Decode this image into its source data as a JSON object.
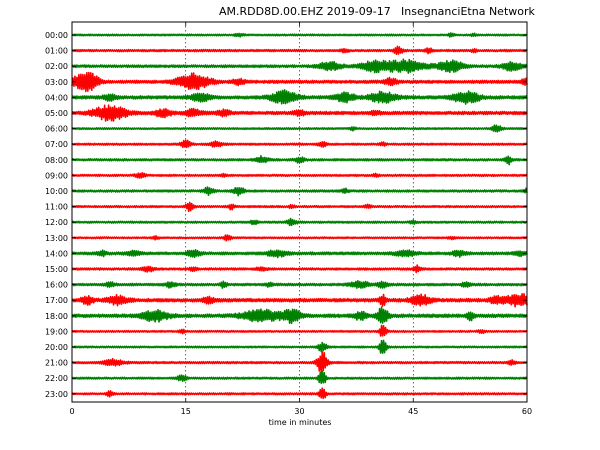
{
  "chart_data": {
    "type": "line",
    "title": "AM.RDD8D.00.EHZ 2019-09-17",
    "network": "InsegnanciEtna Network",
    "xlabel": "time in minutes",
    "xlim": [
      0,
      60
    ],
    "xticks": [
      0,
      15,
      30,
      45,
      60
    ],
    "grid": "dotted vertical lines at 15, 30, 45 minutes",
    "colors": {
      "red": "#ff0000",
      "green": "#008000"
    },
    "series": [
      {
        "label": "00:00",
        "color": "green",
        "noise": 0.8,
        "events": [
          [
            22,
            1.2,
            1.5
          ],
          [
            50,
            1.6,
            1.0
          ],
          [
            53,
            1.0,
            1.0
          ]
        ]
      },
      {
        "label": "01:00",
        "color": "red",
        "noise": 1.0,
        "events": [
          [
            36,
            1.5,
            1.2
          ],
          [
            43,
            3.5,
            1.5
          ],
          [
            47,
            2.2,
            1.2
          ],
          [
            53,
            1.2,
            1.0
          ]
        ]
      },
      {
        "label": "02:00",
        "color": "green",
        "noise": 1.2,
        "events": [
          [
            34,
            4.0,
            3.5
          ],
          [
            40,
            5.0,
            4.5
          ],
          [
            44,
            6.0,
            6.0
          ],
          [
            50,
            5.0,
            4.0
          ],
          [
            58,
            4.0,
            3.0
          ]
        ]
      },
      {
        "label": "03:00",
        "color": "red",
        "noise": 1.4,
        "events": [
          [
            1,
            6.0,
            3.0
          ],
          [
            2.5,
            7.0,
            2.5
          ],
          [
            16,
            7.5,
            5.0
          ],
          [
            22,
            2.5,
            2.0
          ],
          [
            42,
            3.0,
            2.0
          ],
          [
            60,
            2.5,
            2.0
          ]
        ]
      },
      {
        "label": "04:00",
        "color": "green",
        "noise": 1.5,
        "events": [
          [
            5,
            3.0,
            2.0
          ],
          [
            17,
            3.5,
            3.0
          ],
          [
            28,
            6.0,
            4.0
          ],
          [
            36,
            4.0,
            3.0
          ],
          [
            41,
            5.0,
            4.0
          ],
          [
            52,
            5.5,
            4.0
          ]
        ]
      },
      {
        "label": "05:00",
        "color": "red",
        "noise": 1.5,
        "events": [
          [
            5,
            7.0,
            5.0
          ],
          [
            12,
            3.5,
            2.5
          ],
          [
            16,
            3.0,
            2.5
          ],
          [
            20,
            2.5,
            2.0
          ],
          [
            30,
            2.0,
            2.0
          ],
          [
            40,
            1.5,
            1.5
          ]
        ]
      },
      {
        "label": "06:00",
        "color": "green",
        "noise": 0.8,
        "events": [
          [
            56,
            3.5,
            1.5
          ],
          [
            37,
            1.5,
            1.0
          ]
        ]
      },
      {
        "label": "07:00",
        "color": "red",
        "noise": 0.9,
        "events": [
          [
            15,
            4.0,
            1.5
          ],
          [
            19,
            2.5,
            2.0
          ],
          [
            33,
            2.0,
            1.5
          ],
          [
            41,
            1.5,
            1.0
          ]
        ]
      },
      {
        "label": "08:00",
        "color": "green",
        "noise": 1.0,
        "events": [
          [
            25,
            3.0,
            2.0
          ],
          [
            30,
            2.5,
            1.5
          ],
          [
            57.5,
            4.5,
            1.0
          ]
        ]
      },
      {
        "label": "09:00",
        "color": "red",
        "noise": 0.9,
        "events": [
          [
            9,
            2.5,
            1.5
          ],
          [
            20,
            1.5,
            1.0
          ],
          [
            40,
            1.2,
            1.0
          ]
        ]
      },
      {
        "label": "10:00",
        "color": "green",
        "noise": 1.0,
        "events": [
          [
            18,
            3.5,
            1.5
          ],
          [
            22,
            4.0,
            1.5
          ],
          [
            36,
            2.0,
            1.0
          ],
          [
            60,
            2.0,
            1.0
          ]
        ]
      },
      {
        "label": "11:00",
        "color": "red",
        "noise": 0.9,
        "events": [
          [
            15.5,
            5.0,
            1.0
          ],
          [
            21,
            2.5,
            1.0
          ],
          [
            29,
            1.5,
            1.0
          ],
          [
            39,
            1.5,
            1.0
          ]
        ]
      },
      {
        "label": "12:00",
        "color": "green",
        "noise": 0.9,
        "events": [
          [
            24,
            2.0,
            1.0
          ],
          [
            29,
            3.0,
            1.5
          ],
          [
            45,
            1.5,
            1.0
          ]
        ]
      },
      {
        "label": "13:00",
        "color": "red",
        "noise": 0.8,
        "events": [
          [
            11,
            1.5,
            1.0
          ],
          [
            20.5,
            3.0,
            1.0
          ],
          [
            50,
            1.2,
            1.0
          ]
        ]
      },
      {
        "label": "14:00",
        "color": "green",
        "noise": 1.3,
        "events": [
          [
            4,
            2.0,
            1.5
          ],
          [
            8,
            2.5,
            2.0
          ],
          [
            16,
            3.5,
            2.0
          ],
          [
            27,
            3.0,
            3.0
          ],
          [
            44,
            3.0,
            3.0
          ],
          [
            51,
            2.5,
            2.0
          ],
          [
            59,
            2.0,
            2.0
          ]
        ]
      },
      {
        "label": "15:00",
        "color": "red",
        "noise": 1.0,
        "events": [
          [
            10,
            2.5,
            2.0
          ],
          [
            16,
            2.0,
            1.0
          ],
          [
            25,
            1.8,
            1.5
          ],
          [
            45.5,
            3.0,
            1.0
          ]
        ]
      },
      {
        "label": "16:00",
        "color": "green",
        "noise": 1.1,
        "events": [
          [
            5,
            2.0,
            1.5
          ],
          [
            13,
            2.5,
            1.5
          ],
          [
            20,
            3.0,
            1.0
          ],
          [
            26,
            2.0,
            1.0
          ],
          [
            38,
            3.0,
            3.0
          ],
          [
            41,
            3.0,
            1.5
          ],
          [
            52,
            2.0,
            1.5
          ]
        ]
      },
      {
        "label": "17:00",
        "color": "red",
        "noise": 1.6,
        "events": [
          [
            2,
            3.5,
            2.0
          ],
          [
            6,
            4.0,
            3.0
          ],
          [
            18,
            2.5,
            2.0
          ],
          [
            41,
            5.0,
            1.0
          ],
          [
            46,
            5.0,
            3.0
          ],
          [
            56,
            3.0,
            2.0
          ],
          [
            59,
            6.0,
            4.0
          ]
        ]
      },
      {
        "label": "18:00",
        "color": "green",
        "noise": 1.6,
        "events": [
          [
            11,
            5.0,
            4.0
          ],
          [
            25,
            5.5,
            6.0
          ],
          [
            29,
            5.5,
            3.0
          ],
          [
            38,
            3.5,
            2.0
          ],
          [
            41,
            9.0,
            1.5
          ],
          [
            52.5,
            5.0,
            1.0
          ]
        ]
      },
      {
        "label": "19:00",
        "color": "red",
        "noise": 0.8,
        "events": [
          [
            14.5,
            2.0,
            1.0
          ],
          [
            41,
            7.0,
            1.0
          ],
          [
            54,
            2.0,
            1.0
          ]
        ]
      },
      {
        "label": "20:00",
        "color": "green",
        "noise": 0.8,
        "events": [
          [
            33,
            4.0,
            1.5
          ],
          [
            41,
            9.0,
            1.0
          ]
        ]
      },
      {
        "label": "21:00",
        "color": "red",
        "noise": 1.0,
        "events": [
          [
            5.5,
            3.0,
            3.0
          ],
          [
            33,
            11.0,
            1.5
          ],
          [
            58,
            2.0,
            1.0
          ]
        ]
      },
      {
        "label": "22:00",
        "color": "green",
        "noise": 0.9,
        "events": [
          [
            14.5,
            2.5,
            1.5
          ],
          [
            33,
            8.0,
            1.0
          ]
        ]
      },
      {
        "label": "23:00",
        "color": "red",
        "noise": 0.9,
        "events": [
          [
            5,
            2.5,
            1.0
          ],
          [
            33,
            7.0,
            1.0
          ]
        ]
      }
    ]
  }
}
